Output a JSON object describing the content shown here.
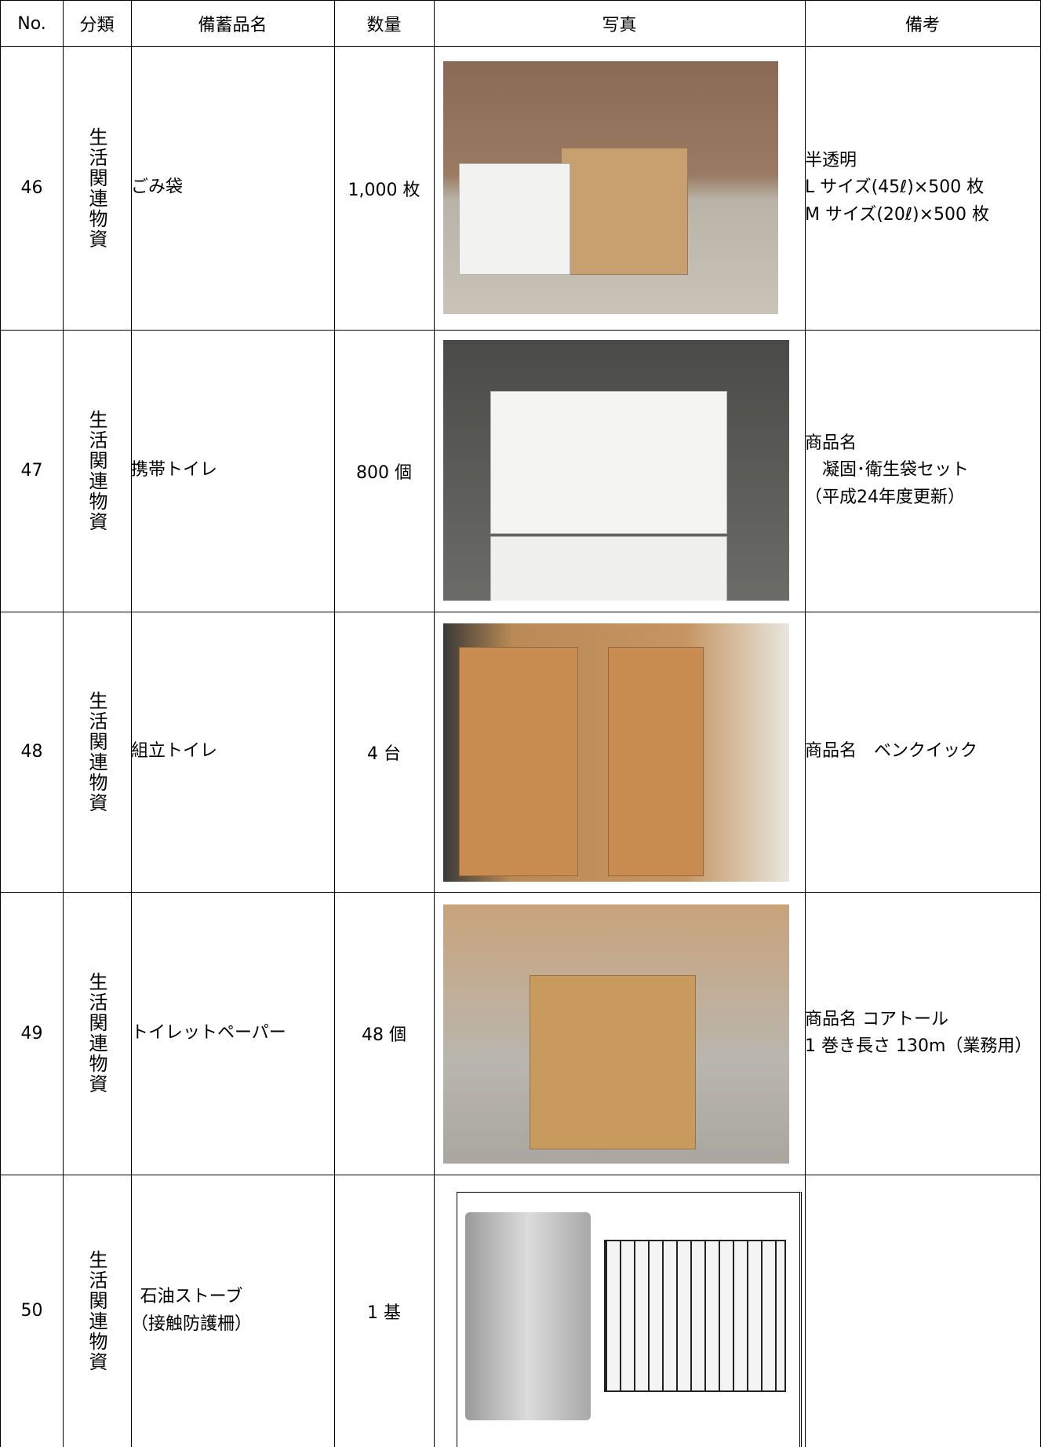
{
  "table": {
    "columns": [
      "No.",
      "分類",
      "備蓄品名",
      "数量",
      "写真",
      "備考"
    ],
    "rows": [
      {
        "no": 46,
        "category": "生活関連物資",
        "name": [
          "ごみ袋"
        ],
        "quantity": "1,000 枚",
        "notes": [
          "半透明",
          "L サイズ(45ℓ)×500 枚",
          "M サイズ(20ℓ)×500 枚"
        ]
      },
      {
        "no": 47,
        "category": "生活関連物資",
        "name": [
          "携帯トイレ"
        ],
        "quantity": "800 個",
        "notes": [
          "商品名",
          "　凝固･衛生袋セット",
          "（平成24年度更新）"
        ]
      },
      {
        "no": 48,
        "category": "生活関連物資",
        "name": [
          "組立トイレ"
        ],
        "quantity": "4 台",
        "notes": [
          "商品名　ベンクイック"
        ]
      },
      {
        "no": 49,
        "category": "生活関連物資",
        "name": [
          "トイレットペーパー"
        ],
        "quantity": "48 個",
        "notes": [
          "商品名 コアトール",
          "1 巻き長さ 130m（業務用）"
        ]
      },
      {
        "no": 50,
        "category": "生活関連物資",
        "name": [
          "石油ストーブ",
          "（接触防護柵）"
        ],
        "quantity": "1 基",
        "notes": []
      }
    ]
  }
}
